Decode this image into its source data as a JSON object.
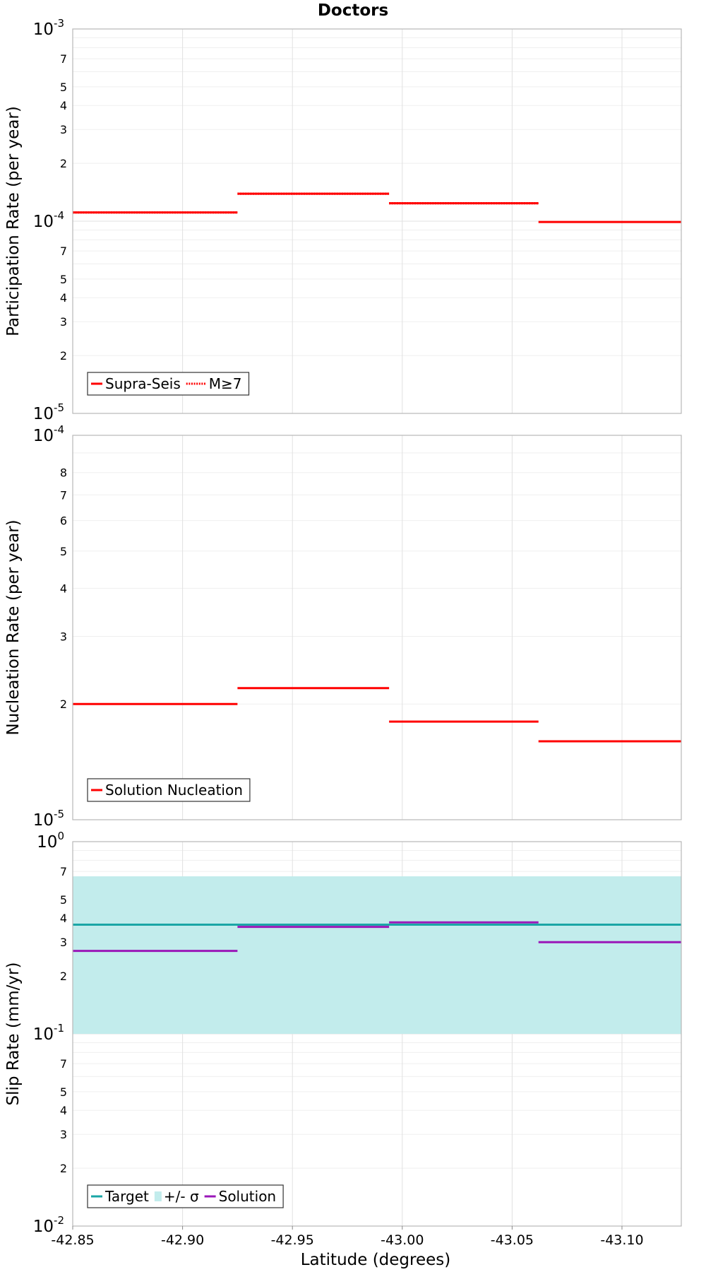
{
  "title": "Doctors",
  "x_axis": {
    "label": "Latitude (degrees)",
    "range": [
      -42.85,
      -43.127
    ],
    "ticks": [
      -42.85,
      -42.9,
      -42.95,
      -43.0,
      -43.05,
      -43.1
    ],
    "tick_labels": [
      "-42.85",
      "-42.90",
      "-42.95",
      "-43.00",
      "-43.05",
      "-43.10"
    ]
  },
  "colors": {
    "supra_seis": "#ff0000",
    "m7": "#ff0000",
    "nucleation": "#ff0000",
    "target": "#1aa6a6",
    "sigma_band": "#c2ecec",
    "solution": "#9a17b8"
  },
  "chart_data": [
    {
      "type": "line",
      "name": "participation",
      "ylabel": "Participation Rate (per year)",
      "yscale": "log",
      "ylim": [
        1e-05,
        0.001
      ],
      "decade_labels": [
        {
          "value": 1e-05,
          "exp": "-5"
        },
        {
          "value": 0.0001,
          "exp": "-4"
        },
        {
          "value": 0.001,
          "exp": "-3"
        }
      ],
      "minor_tick_labels": [
        2,
        3,
        4,
        5,
        7
      ],
      "series": [
        {
          "name": "Supra-Seis",
          "style": "solid",
          "segments": [
            {
              "x0": -42.85,
              "x1": -42.925,
              "y": 0.000111
            },
            {
              "x0": -42.925,
              "x1": -42.994,
              "y": 0.000139
            },
            {
              "x0": -42.994,
              "x1": -43.062,
              "y": 0.000124
            },
            {
              "x0": -43.062,
              "x1": -43.127,
              "y": 9.9e-05
            }
          ]
        },
        {
          "name": "M≥7",
          "style": "dotted",
          "segments": [
            {
              "x0": -42.85,
              "x1": -42.925,
              "y": 0.000111
            },
            {
              "x0": -42.925,
              "x1": -42.994,
              "y": 0.000139
            },
            {
              "x0": -42.994,
              "x1": -43.062,
              "y": 0.000124
            }
          ]
        }
      ],
      "legend": [
        {
          "label": "Supra-Seis",
          "kind": "solid",
          "color_key": "supra_seis"
        },
        {
          "label": "M≥7",
          "kind": "dotted",
          "color_key": "m7"
        }
      ]
    },
    {
      "type": "line",
      "name": "nucleation",
      "ylabel": "Nucleation Rate (per year)",
      "yscale": "log",
      "ylim": [
        1e-05,
        0.0001
      ],
      "decade_labels": [
        {
          "value": 1e-05,
          "exp": "-5"
        },
        {
          "value": 0.0001,
          "exp": "-4"
        }
      ],
      "minor_tick_labels": [
        2,
        3,
        4,
        5,
        6,
        7,
        8
      ],
      "series": [
        {
          "name": "Solution Nucleation",
          "style": "solid",
          "segments": [
            {
              "x0": -42.85,
              "x1": -42.925,
              "y": 2e-05
            },
            {
              "x0": -42.925,
              "x1": -42.994,
              "y": 2.2e-05
            },
            {
              "x0": -42.994,
              "x1": -43.062,
              "y": 1.8e-05
            },
            {
              "x0": -43.062,
              "x1": -43.127,
              "y": 1.6e-05
            }
          ]
        }
      ],
      "legend": [
        {
          "label": "Solution Nucleation",
          "kind": "solid",
          "color_key": "nucleation"
        }
      ]
    },
    {
      "type": "line",
      "name": "slip",
      "ylabel": "Slip Rate (mm/yr)",
      "yscale": "log",
      "ylim": [
        0.01,
        1
      ],
      "decade_labels": [
        {
          "value": 0.01,
          "exp": "-2"
        },
        {
          "value": 0.1,
          "exp": "-1"
        },
        {
          "value": 1,
          "exp": "0"
        }
      ],
      "minor_tick_labels": [
        2,
        3,
        4,
        5,
        7
      ],
      "band": {
        "name": "+/- σ",
        "x0": -42.85,
        "x1": -43.127,
        "y_low": 0.1,
        "y_high": 0.66
      },
      "series": [
        {
          "name": "Target",
          "style": "solid",
          "segments": [
            {
              "x0": -42.85,
              "x1": -43.127,
              "y": 0.37
            }
          ]
        },
        {
          "name": "Solution",
          "style": "solid",
          "segments": [
            {
              "x0": -42.85,
              "x1": -42.925,
              "y": 0.27
            },
            {
              "x0": -42.925,
              "x1": -42.994,
              "y": 0.36
            },
            {
              "x0": -42.994,
              "x1": -43.062,
              "y": 0.38
            },
            {
              "x0": -43.062,
              "x1": -43.127,
              "y": 0.3
            }
          ]
        }
      ],
      "legend": [
        {
          "label": "Target",
          "kind": "solid",
          "color_key": "target"
        },
        {
          "label": "+/- σ",
          "kind": "box",
          "color_key": "sigma_band"
        },
        {
          "label": "Solution",
          "kind": "solid",
          "color_key": "solution"
        }
      ]
    }
  ]
}
